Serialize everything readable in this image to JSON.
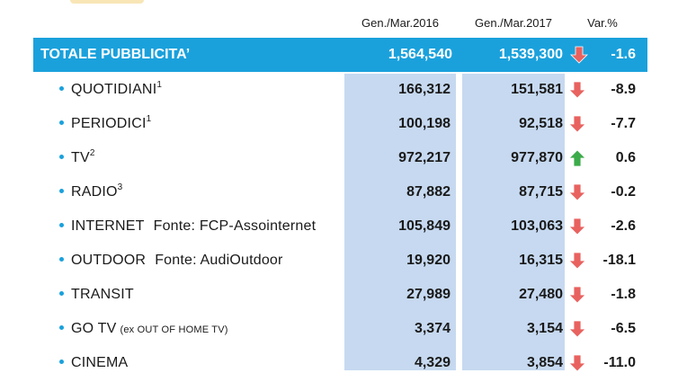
{
  "headers": {
    "col1": "Gen./Mar.2016",
    "col2": "Gen./Mar.2017",
    "col3": "Var.%"
  },
  "total": {
    "label": "TOTALE PUBBLICITA’",
    "v2016": "1,564,540",
    "v2017": "1,539,300",
    "var": "-1.6",
    "trend": "down"
  },
  "rows": [
    {
      "label": "QUOTIDIANI",
      "sup": "1",
      "source": "",
      "note": "",
      "v2016": "166,312",
      "v2017": "151,581",
      "var": "-8.9",
      "trend": "down"
    },
    {
      "label": "PERIODICI",
      "sup": "1",
      "source": "",
      "note": "",
      "v2016": "100,198",
      "v2017": "92,518",
      "var": "-7.7",
      "trend": "down"
    },
    {
      "label": "TV",
      "sup": "2",
      "source": "",
      "note": "",
      "v2016": "972,217",
      "v2017": "977,870",
      "var": "0.6",
      "trend": "up"
    },
    {
      "label": "RADIO",
      "sup": "3",
      "source": "",
      "note": "",
      "v2016": "87,882",
      "v2017": "87,715",
      "var": "-0.2",
      "trend": "down"
    },
    {
      "label": "INTERNET",
      "sup": "",
      "source": "Fonte: FCP-Assointernet",
      "note": "",
      "v2016": "105,849",
      "v2017": "103,063",
      "var": "-2.6",
      "trend": "down"
    },
    {
      "label": "OUTDOOR",
      "sup": "",
      "source": "Fonte: AudiOutdoor",
      "note": "",
      "v2016": "19,920",
      "v2017": "16,315",
      "var": "-18.1",
      "trend": "down"
    },
    {
      "label": "TRANSIT",
      "sup": "",
      "source": "",
      "note": "",
      "v2016": "27,989",
      "v2017": "27,480",
      "var": "-1.8",
      "trend": "down"
    },
    {
      "label": "GO TV",
      "sup": "",
      "source": "",
      "note": "(ex OUT OF HOME TV)",
      "v2016": "3,374",
      "v2017": "3,154",
      "var": "-6.5",
      "trend": "down"
    },
    {
      "label": "CINEMA",
      "sup": "",
      "source": "",
      "note": "",
      "v2016": "4,329",
      "v2017": "3,854",
      "var": "-11.0",
      "trend": "down"
    }
  ],
  "colors": {
    "accent": "#1aa1dc",
    "column_shade": "#c6d9f0",
    "down_arrow": "#e8625f",
    "up_arrow": "#3cab4a"
  },
  "icons": {
    "down": "arrow-down-icon",
    "up": "arrow-up-icon"
  }
}
